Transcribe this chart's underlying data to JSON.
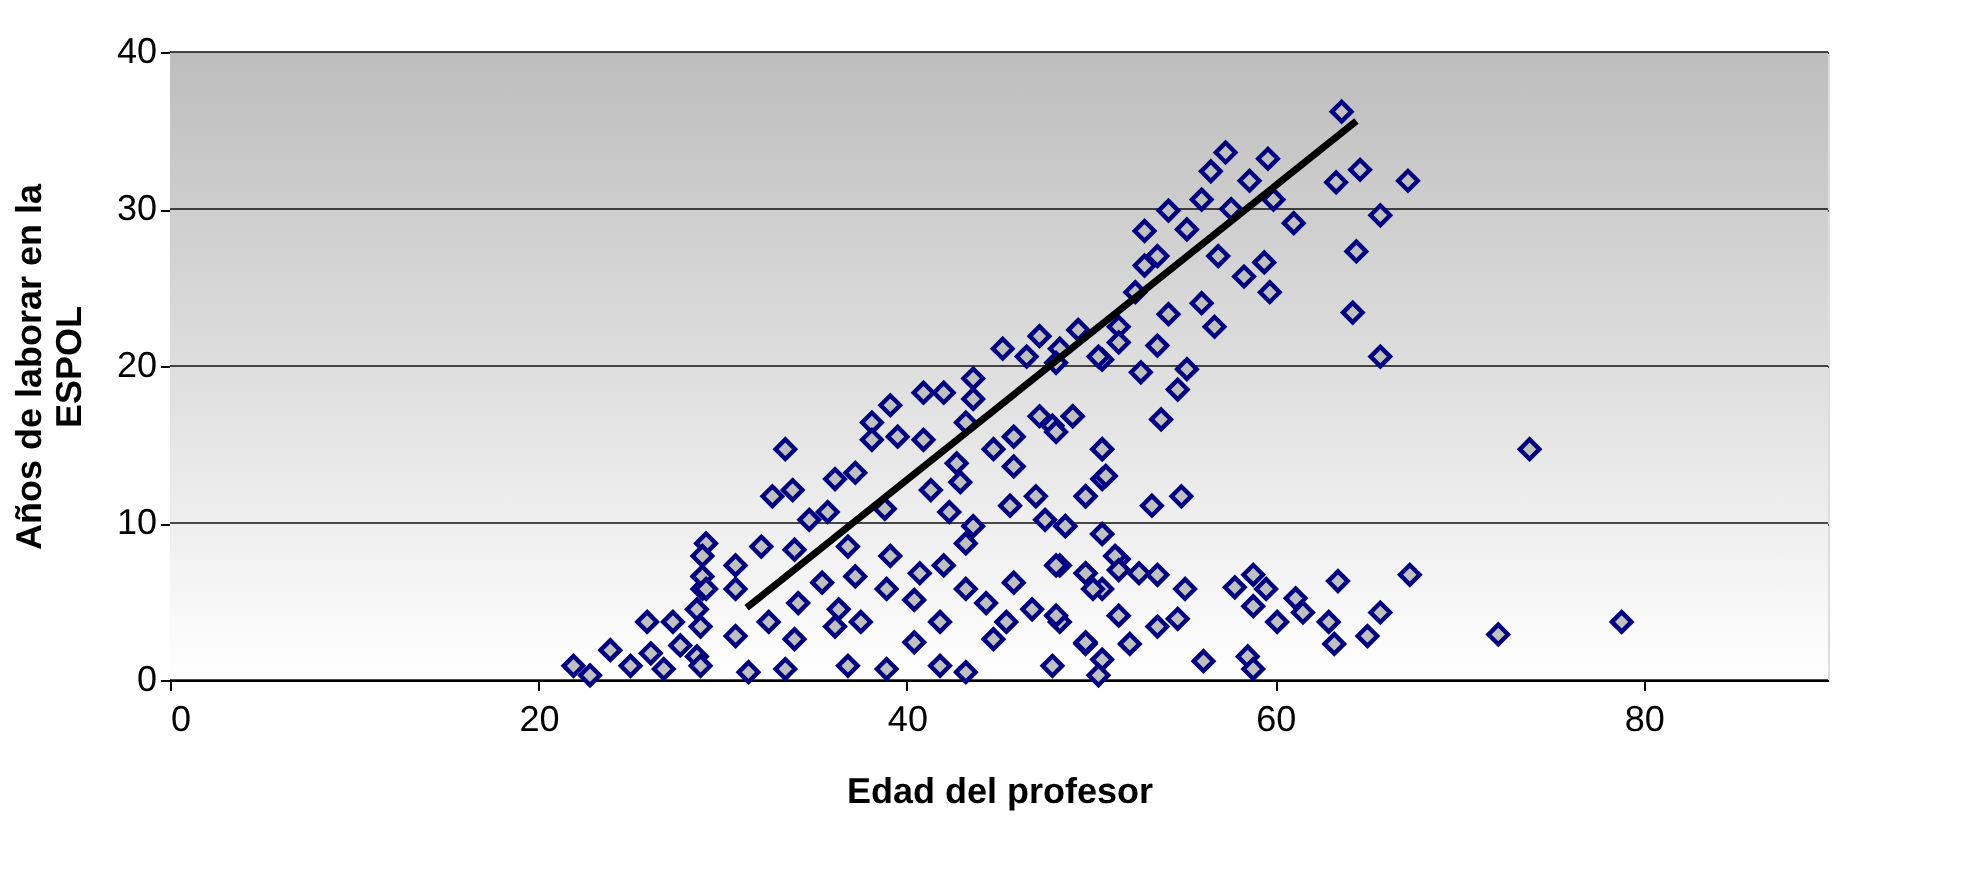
{
  "chart_data": {
    "type": "scatter",
    "xlabel": "Edad del profesor",
    "ylabel": "Años de laborar en la ESPOL",
    "xlim": [
      0,
      90
    ],
    "xticks": [
      0,
      20,
      40,
      60,
      80
    ],
    "ylim": [
      0,
      40
    ],
    "yticks": [
      0,
      10,
      20,
      30,
      40
    ],
    "grid": "y",
    "series": [
      {
        "marker": "diamond",
        "color": "#000080",
        "x": [
          63.6,
          63.3,
          64.6,
          67.2,
          65.7,
          64.4,
          64.2,
          65.7,
          67.3,
          63.4,
          65.7,
          65,
          63.2,
          62.9,
          57.3,
          59.6,
          56.5,
          58.6,
          54.2,
          52.9,
          56,
          59.9,
          61,
          57.6,
          55.2,
          59.7,
          56.7,
          54.2,
          59.4,
          58.3,
          56.9,
          52.9,
          53.6,
          56,
          52.4,
          53.6,
          52.7,
          55.2,
          54.7,
          53.8,
          50.6,
          49.3,
          51.5,
          48.3,
          49,
          50.6,
          50.6,
          49.7,
          53.3,
          54.9,
          48.6,
          50.6,
          51.5,
          49.7,
          48.3,
          52.6,
          53.6,
          55.1,
          50.6,
          48.3,
          51.5,
          53.6,
          54.7,
          49.7,
          50.6,
          52.1,
          56.1,
          58.5,
          58.8,
          57.8,
          58.8,
          59.5,
          58.8,
          60.1,
          61.1,
          61.5,
          47.9,
          73.8,
          72.1,
          78.8,
          33.4,
          32.7,
          33.8,
          34.7,
          35.7,
          36.1,
          37.2,
          38.1,
          39.1,
          38.1,
          39.5,
          40.9,
          38.8,
          40.9,
          42,
          43.6,
          45.2,
          46.5,
          47.2,
          48.1,
          50.4,
          51.5,
          43.6,
          43.2,
          44.7,
          42.7,
          41.3,
          42.9,
          45.8,
          45.8,
          47.2,
          48.1,
          49,
          50.6,
          50.8,
          49.7,
          47,
          45.6,
          42.3,
          43.6,
          43.2,
          47.5,
          48.6,
          50.6,
          48.1,
          51.3,
          49.7,
          29.1,
          32.1,
          33.9,
          36.8,
          39.1,
          40.7,
          42,
          30.7,
          28.9,
          30.7,
          32.5,
          34.1,
          35.4,
          37.2,
          36.3,
          37.5,
          38.9,
          40.4,
          41.8,
          43.2,
          44.3,
          45.8,
          45.4,
          46.8,
          48.1,
          50.1,
          51.5,
          30.7,
          33.9,
          36.1,
          40.4,
          44.7,
          49.7,
          31.4,
          33.4,
          36.8,
          38.9,
          41.8,
          43.2,
          47.9,
          50.4,
          28.6,
          21.9,
          22.8,
          23.9,
          25,
          25.9,
          27.3,
          26.1,
          27.7,
          28.6,
          28.9,
          28.9,
          26.8,
          28.8,
          29.1,
          28.8
        ],
        "values": [
          36.2,
          31.7,
          32.5,
          31.8,
          29.6,
          27.3,
          23.4,
          20.6,
          6.7,
          6.3,
          4.3,
          2.8,
          2.3,
          3.7,
          33.6,
          33.2,
          32.4,
          31.8,
          29.9,
          28.6,
          30.6,
          30.6,
          29.1,
          30,
          28.7,
          24.7,
          22.5,
          23.3,
          26.6,
          25.7,
          27,
          26.4,
          27,
          24,
          24.7,
          21.3,
          19.6,
          19.8,
          18.5,
          16.6,
          20.4,
          22.3,
          22.5,
          21.1,
          16.8,
          14.7,
          12.8,
          11.7,
          11.1,
          11.7,
          9.8,
          9.3,
          7.7,
          6.8,
          7.3,
          6.8,
          6.7,
          5.8,
          5.8,
          3.7,
          4.1,
          3.4,
          3.9,
          2.3,
          1.3,
          2.3,
          1.2,
          1.5,
          0.7,
          5.9,
          6.7,
          5.8,
          4.7,
          3.7,
          5.2,
          4.3,
          16.2,
          14.7,
          2.9,
          3.7,
          14.7,
          11.7,
          12.1,
          10.2,
          10.7,
          12.8,
          13.2,
          16.4,
          17.5,
          15.3,
          15.5,
          15.3,
          10.9,
          18.3,
          18.3,
          19.2,
          21.1,
          20.6,
          21.9,
          20.2,
          20.6,
          21.5,
          17.9,
          16.4,
          14.7,
          13.8,
          12.1,
          12.6,
          15.5,
          13.6,
          16.8,
          15.8,
          16.8,
          14.7,
          13,
          11.7,
          11.7,
          11.1,
          10.7,
          9.8,
          8.7,
          10.2,
          9.8,
          9.3,
          7.3,
          7.9,
          6.8,
          8.7,
          8.5,
          8.3,
          8.5,
          7.9,
          6.8,
          7.3,
          7.3,
          5.8,
          5.8,
          3.7,
          4.9,
          6.2,
          6.6,
          4.5,
          3.7,
          5.8,
          5.1,
          3.7,
          5.8,
          4.9,
          6.2,
          3.7,
          4.5,
          4.1,
          5.8,
          7,
          2.8,
          2.6,
          3.4,
          2.4,
          2.6,
          2.4,
          0.5,
          0.7,
          0.9,
          0.7,
          0.9,
          0.5,
          0.9,
          0.3,
          1.5,
          0.9,
          0.3,
          1.9,
          0.9,
          3.7,
          3.7,
          1.7,
          2.2,
          4.5,
          6.6,
          7.9,
          0.7,
          0.9,
          5.8,
          3.4
        ]
      },
      {
        "type": "line",
        "color": "#000000",
        "x": [
          31.3,
          64.4
        ],
        "values": [
          4.6,
          35.6
        ]
      }
    ]
  }
}
